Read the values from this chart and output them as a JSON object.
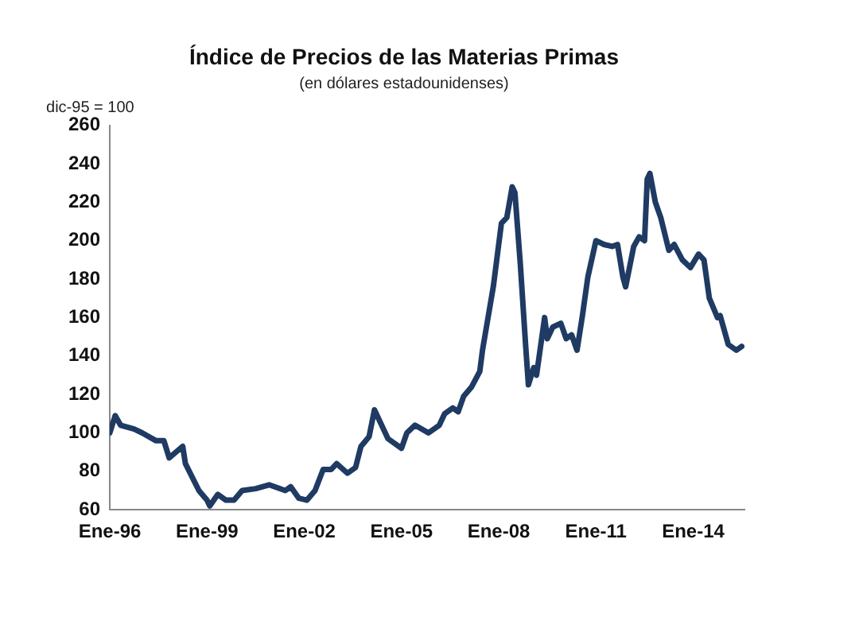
{
  "chart_data": {
    "type": "line",
    "title": "Índice de Precios de las Materias Primas",
    "subtitle": "(en dólares estadounidenses)",
    "annotations": [
      "dic-95 = 100"
    ],
    "x": [
      "1996-01",
      "1996-03",
      "1996-05",
      "1996-10",
      "1997-01",
      "1997-06",
      "1997-09",
      "1997-11",
      "1998-04",
      "1998-05",
      "1998-10",
      "1999-01",
      "1999-02",
      "1999-05",
      "1999-08",
      "1999-11",
      "2000-02",
      "2000-07",
      "2000-12",
      "2001-06",
      "2001-08",
      "2001-11",
      "2002-02",
      "2002-05",
      "2002-08",
      "2002-11",
      "2003-01",
      "2003-05",
      "2003-08",
      "2003-10",
      "2004-01",
      "2004-03",
      "2004-05",
      "2004-08",
      "2005-01",
      "2005-03",
      "2005-06",
      "2005-11",
      "2006-03",
      "2006-05",
      "2006-08",
      "2006-10",
      "2006-12",
      "2007-03",
      "2007-06",
      "2007-07",
      "2007-11",
      "2008-02",
      "2008-04",
      "2008-06",
      "2008-07",
      "2008-09",
      "2008-11",
      "2008-12",
      "2009-02",
      "2009-03",
      "2009-06",
      "2009-07",
      "2009-09",
      "2009-12",
      "2010-02",
      "2010-04",
      "2010-06",
      "2010-08",
      "2010-10",
      "2011-01",
      "2011-04",
      "2011-07",
      "2011-09",
      "2011-11",
      "2011-12",
      "2012-03",
      "2012-05",
      "2012-07",
      "2012-08",
      "2012-09",
      "2012-11",
      "2013-01",
      "2013-04",
      "2013-06",
      "2013-09",
      "2013-12",
      "2014-03",
      "2014-05",
      "2014-07",
      "2014-10",
      "2014-11",
      "2015-02",
      "2015-05",
      "2015-07"
    ],
    "series": [
      {
        "color": "#1f3b63",
        "values": [
          100,
          109,
          104,
          102,
          100,
          96,
          96,
          87,
          93,
          84,
          70,
          65,
          62,
          68,
          65,
          65,
          70,
          71,
          73,
          70,
          72,
          66,
          65,
          70,
          81,
          81,
          84,
          79,
          82,
          93,
          98,
          112,
          106,
          97,
          92,
          100,
          104,
          100,
          104,
          110,
          113,
          111,
          119,
          124,
          132,
          143,
          176,
          209,
          212,
          228,
          225,
          188,
          145,
          125,
          134,
          130,
          160,
          149,
          155,
          157,
          149,
          151,
          143,
          161,
          181,
          200,
          198,
          197,
          198,
          181,
          176,
          197,
          202,
          200,
          232,
          235,
          220,
          212,
          195,
          198,
          190,
          186,
          193,
          190,
          170,
          160,
          161,
          146,
          143,
          145
        ]
      }
    ],
    "xlim": [
      "1996-01",
      "2015-08"
    ],
    "xticks": [
      {
        "value": "1996-01",
        "label": "Ene-96"
      },
      {
        "value": "1999-01",
        "label": "Ene-99"
      },
      {
        "value": "2002-01",
        "label": "Ene-02"
      },
      {
        "value": "2005-01",
        "label": "Ene-05"
      },
      {
        "value": "2008-01",
        "label": "Ene-08"
      },
      {
        "value": "2011-01",
        "label": "Ene-11"
      },
      {
        "value": "2014-01",
        "label": "Ene-14"
      }
    ],
    "ylim": [
      60,
      260
    ],
    "yticks": [
      60,
      80,
      100,
      120,
      140,
      160,
      180,
      200,
      220,
      240,
      260
    ],
    "grid": false,
    "legend": false,
    "marker": "none",
    "line_style": "solid"
  }
}
